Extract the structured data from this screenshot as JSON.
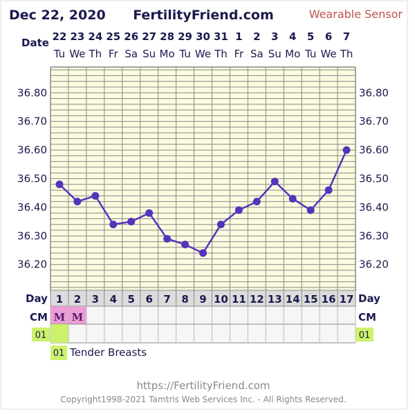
{
  "header": {
    "date": "Dec 22, 2020",
    "site": "FertilityFriend.com",
    "sensor": "Wearable Sensor"
  },
  "labels": {
    "date_row": "Date",
    "day_row": "Day",
    "cm_row": "CM"
  },
  "chart_data": {
    "type": "line",
    "dates": [
      "22",
      "23",
      "24",
      "25",
      "26",
      "27",
      "28",
      "29",
      "30",
      "31",
      "1",
      "2",
      "3",
      "4",
      "5",
      "6",
      "7"
    ],
    "weekdays": [
      "Tu",
      "We",
      "Th",
      "Fr",
      "Sa",
      "Su",
      "Mo",
      "Tu",
      "We",
      "Th",
      "Fr",
      "Sa",
      "Su",
      "Mo",
      "Tu",
      "We",
      "Th"
    ],
    "days": [
      "1",
      "2",
      "3",
      "4",
      "5",
      "6",
      "7",
      "8",
      "9",
      "10",
      "11",
      "12",
      "13",
      "14",
      "15",
      "16",
      "17"
    ],
    "values": [
      36.48,
      36.42,
      36.44,
      36.34,
      36.35,
      36.38,
      36.29,
      36.27,
      36.24,
      36.34,
      36.39,
      36.42,
      36.49,
      36.43,
      36.39,
      36.46,
      36.6
    ],
    "yticks": [
      "36.80",
      "36.70",
      "36.60",
      "36.50",
      "36.40",
      "36.30",
      "36.20"
    ],
    "ylim": [
      36.11,
      36.89
    ],
    "line_color": "#5533bb",
    "grid_bg": "#fbfbdf",
    "grid_color": "#888888"
  },
  "cm": {
    "values": [
      "M",
      "M"
    ],
    "highlight_color": "#ec9ed4"
  },
  "symptoms": {
    "row_code": "01",
    "marked_day_index": 0,
    "highlight_color": "#ccf26b"
  },
  "legend": {
    "code": "01",
    "text": "Tender Breasts"
  },
  "footer": {
    "url": "https://FertilityFriend.com",
    "copyright": "Copyright1998-2021 Tamtris Web Services Inc. - All Rights Reserved."
  }
}
